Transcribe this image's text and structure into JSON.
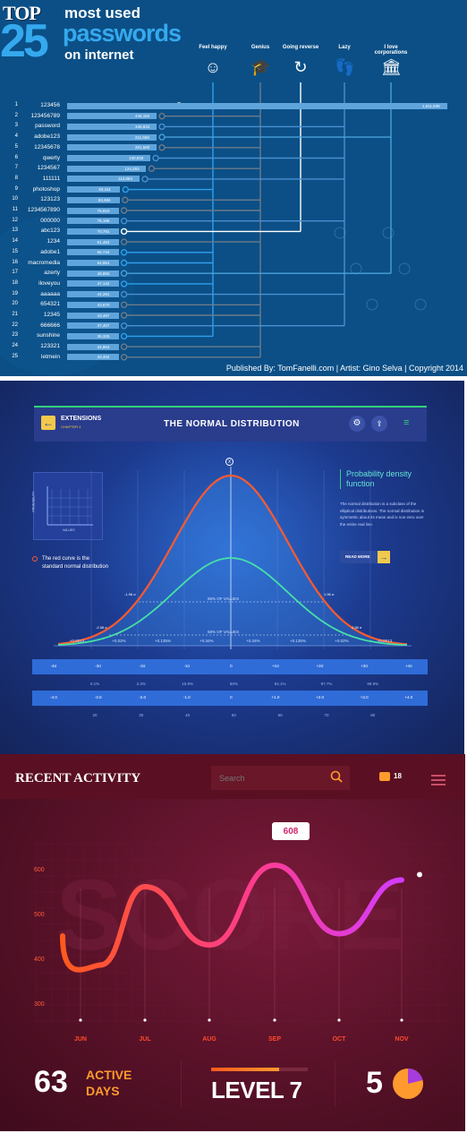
{
  "panel1": {
    "title_top": "TOP",
    "title_num": "25",
    "title_line1": "most used",
    "title_line2": "passwords",
    "title_line3": "on internet",
    "categories": [
      {
        "label": "Feel happy",
        "icon": "smiley-icon"
      },
      {
        "label": "Genius",
        "icon": "graduation-cap-icon"
      },
      {
        "label": "Going reverse",
        "icon": "reverse-arrow-icon"
      },
      {
        "label": "Lazy",
        "icon": "footprints-icon"
      },
      {
        "label": "I love corporations",
        "icon": "bank-building-icon"
      }
    ],
    "rows": [
      {
        "rank": "1",
        "password": "123456",
        "value": 1911938,
        "label": "1,911,938",
        "cat": 2
      },
      {
        "rank": "2",
        "password": "123456789",
        "value": 446162,
        "label": "446,162",
        "cat": 1
      },
      {
        "rank": "3",
        "password": "password",
        "value": 345834,
        "label": "345,834",
        "cat": 3
      },
      {
        "rank": "4",
        "password": "adobe123",
        "value": 211659,
        "label": "211,659",
        "cat": 4
      },
      {
        "rank": "5",
        "password": "12345678",
        "value": 201580,
        "label": "201,580",
        "cat": 1
      },
      {
        "rank": "6",
        "password": "qwerty",
        "value": 130832,
        "label": "130,832",
        "cat": 3
      },
      {
        "rank": "7",
        "password": "1234567",
        "value": 124253,
        "label": "124,253",
        "cat": 1
      },
      {
        "rank": "8",
        "password": "111111",
        "value": 113884,
        "label": "113,884",
        "cat": 3
      },
      {
        "rank": "9",
        "password": "photoshop",
        "value": 83411,
        "label": "83,411",
        "cat": 0
      },
      {
        "rank": "10",
        "password": "123123",
        "value": 82694,
        "label": "82,694",
        "cat": 1
      },
      {
        "rank": "11",
        "password": "1234567890",
        "value": 76910,
        "label": "76,910",
        "cat": 1
      },
      {
        "rank": "12",
        "password": "000000",
        "value": 76186,
        "label": "76,186",
        "cat": 3
      },
      {
        "rank": "13",
        "password": "abc123",
        "value": 70791,
        "label": "70,791",
        "cat": 2
      },
      {
        "rank": "14",
        "password": "1234",
        "value": 61453,
        "label": "61,453",
        "cat": 1
      },
      {
        "rank": "15",
        "password": "adobe1",
        "value": 56744,
        "label": "56,744",
        "cat": 0
      },
      {
        "rank": "16",
        "password": "macromedia",
        "value": 54651,
        "label": "54,651",
        "cat": 0
      },
      {
        "rank": "17",
        "password": "azerty",
        "value": 48850,
        "label": "48,850",
        "cat": 4
      },
      {
        "rank": "18",
        "password": "iloveyou",
        "value": 47142,
        "label": "47,142",
        "cat": 0
      },
      {
        "rank": "19",
        "password": "aaaaaa",
        "value": 44281,
        "label": "44,281",
        "cat": 3
      },
      {
        "rank": "20",
        "password": "654321",
        "value": 43670,
        "label": "43,670",
        "cat": 1
      },
      {
        "rank": "21",
        "password": "12345",
        "value": 43497,
        "label": "43,497",
        "cat": 1
      },
      {
        "rank": "22",
        "password": "666666",
        "value": 37407,
        "label": "37,407",
        "cat": 3
      },
      {
        "rank": "23",
        "password": "sunshine",
        "value": 35325,
        "label": "35,325",
        "cat": 0
      },
      {
        "rank": "24",
        "password": "123321",
        "value": 34963,
        "label": "34,963",
        "cat": 1
      },
      {
        "rank": "25",
        "password": "letmein",
        "value": 33452,
        "label": "33,452",
        "cat": 1
      }
    ],
    "footer": "Published By: TomFanelli.com  |  Artist: Gino Selva  |  Copyright 2014",
    "colors": {
      "bg": "#0b4f86",
      "bar": "#5fa4db",
      "lines": [
        "#2ea0ea",
        "#6e7a88",
        "#ffffff",
        "#4a8fd0",
        "#4aa0d8"
      ]
    }
  },
  "panel2": {
    "back_icon": "arrow-left-icon",
    "section_title": "EXTENSIONS",
    "section_sub": "CHAPTER 4",
    "title": "THE NORMAL DISTRIBUTION",
    "settings_icon": "gear-icon",
    "share_icon": "share-icon",
    "menu_icon": "hamburger-icon",
    "mini_ylabel": "PROBABILITY",
    "mini_xlabel": "VALUES",
    "legend_text": "The red curve is the standard normal distribution",
    "mean_marker": "X",
    "info_title": "Probability density function",
    "info_body": "The normal distribution is a subclass of the elliptical distributions. The normal distribution is symmetric about its mean and is non-zero over the entire real line.",
    "read_more": "READ MORE",
    "read_more_icon": "arrow-right-icon",
    "band95": "95% OF VALUES",
    "band68": "68% OF VALUES",
    "sd_labels": [
      "-1.96 σ",
      "1.96 σ",
      "-2.58 σ",
      "2.58 σ"
    ],
    "ticks": [
      "+0.0013",
      "+0.02%",
      "+0.135%",
      "+0.34%",
      "+0.34%",
      "+0.135%",
      "+0.02%",
      "+0.0013"
    ],
    "table": [
      [
        "-4σ",
        "-3σ",
        "-2σ",
        "-1σ",
        "0",
        "+1σ",
        "+2σ",
        "+3σ",
        "+4σ"
      ],
      [
        "0.1%",
        "2.3%",
        "15.9%",
        "50%",
        "84.1%",
        "97.7%",
        "99.9%"
      ],
      [
        "-4.0",
        "-3.0",
        "-2.0",
        "-1.0",
        "0",
        "+1.0",
        "+2.0",
        "+3.0",
        "+4.0"
      ],
      [
        "20",
        "30",
        "40",
        "50",
        "60",
        "70",
        "80"
      ]
    ]
  },
  "panel3": {
    "title": "RECENT ACTIVITY",
    "search_placeholder": "Search",
    "search_icon": "search-icon",
    "chat_icon": "chat-bubble-icon",
    "notif_count": "18",
    "menu_icon": "hamburger-icon",
    "watermark": "SCORE",
    "peak_label": "608",
    "chart_data": {
      "type": "line",
      "x": [
        "JUN",
        "JUL",
        "AUG",
        "SEP",
        "OCT",
        "NOV"
      ],
      "y_ticks": [
        600,
        500,
        400,
        300
      ],
      "ylim": [
        280,
        640
      ],
      "points": [
        {
          "x": "JUN",
          "y": 450
        },
        {
          "x": "JUN",
          "y": 385
        },
        {
          "x": "JUL",
          "y": 560
        },
        {
          "x": "AUG",
          "y": 430
        },
        {
          "x": "SEP",
          "y": 608
        },
        {
          "x": "OCT",
          "y": 455
        },
        {
          "x": "NOV",
          "y": 575
        }
      ]
    },
    "active_num": "63",
    "active_l1": "ACTIVE",
    "active_l2": "DAYS",
    "level": "LEVEL 7",
    "level_progress": 0.7,
    "count": "5",
    "pie_icon": "pie-chart-icon",
    "colors": {
      "bg": "#4d0f24",
      "accent": "#ff9a2e",
      "curve_start": "#ff5a1e",
      "curve_end": "#d23cff"
    }
  }
}
